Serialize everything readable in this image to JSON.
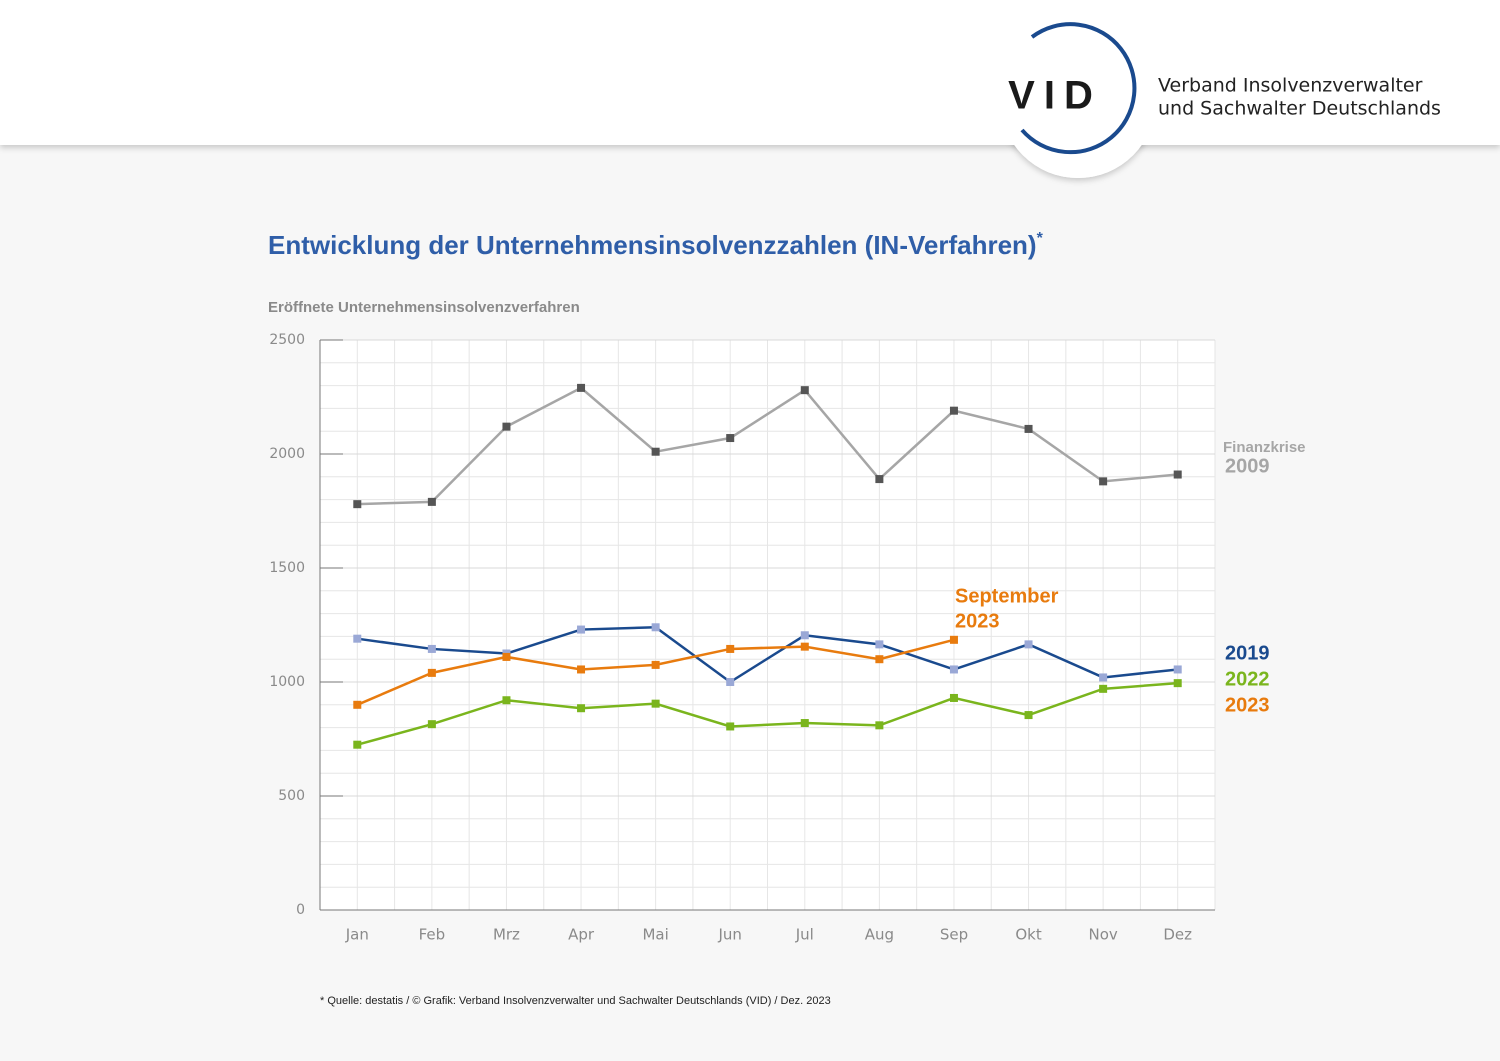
{
  "header": {
    "logo": "VID",
    "org_lines": [
      "Verband Insolvenzverwalter",
      "und Sachwalter Deutschlands"
    ]
  },
  "chart_data": {
    "type": "line",
    "title": "Entwicklung der Unternehmensinsolvenzzahlen (IN-Verfahren)",
    "title_mark": "*",
    "y_label": "Eröffnete Unternehmensinsolvenzverfahren",
    "categories": [
      "Jan",
      "Feb",
      "Mrz",
      "Apr",
      "Mai",
      "Jun",
      "Jul",
      "Aug",
      "Sep",
      "Okt",
      "Nov",
      "Dez"
    ],
    "series": [
      {
        "name": "2009",
        "color": "#a6a6a6",
        "marker_color": "#555555",
        "values": [
          1780,
          1790,
          2120,
          2290,
          2010,
          2070,
          2280,
          1890,
          2190,
          2110,
          1880,
          1910
        ]
      },
      {
        "name": "2019",
        "color": "#1a4a8e",
        "marker_color": "#9aa8d6",
        "values": [
          1190,
          1145,
          1125,
          1230,
          1240,
          1000,
          1205,
          1165,
          1055,
          1165,
          1020,
          1055
        ]
      },
      {
        "name": "2022",
        "color": "#7ab51d",
        "marker_color": "#7ab51d",
        "values": [
          725,
          815,
          920,
          885,
          905,
          805,
          820,
          810,
          930,
          855,
          970,
          995
        ]
      },
      {
        "name": "2023",
        "color": "#e87b0e",
        "marker_color": "#e87b0e",
        "values": [
          900,
          1040,
          1110,
          1055,
          1075,
          1145,
          1155,
          1100,
          1185,
          null,
          null,
          null
        ]
      }
    ],
    "ylim": [
      0,
      2500
    ],
    "yticks": [
      0,
      500,
      1000,
      1500,
      2000,
      2500
    ],
    "grid": true,
    "minor_grid": true,
    "annotations": [
      {
        "lines": [
          "Finanzkrise"
        ],
        "color": "#a6a6a6"
      },
      {
        "lines": [
          "September",
          "2023"
        ],
        "color": "#e87b0e"
      }
    ],
    "footnote": "* Quelle: destatis / © Grafik: Verband Insolvenzverwalter und Sachwalter Deutschlands (VID) / Dez. 2023"
  }
}
